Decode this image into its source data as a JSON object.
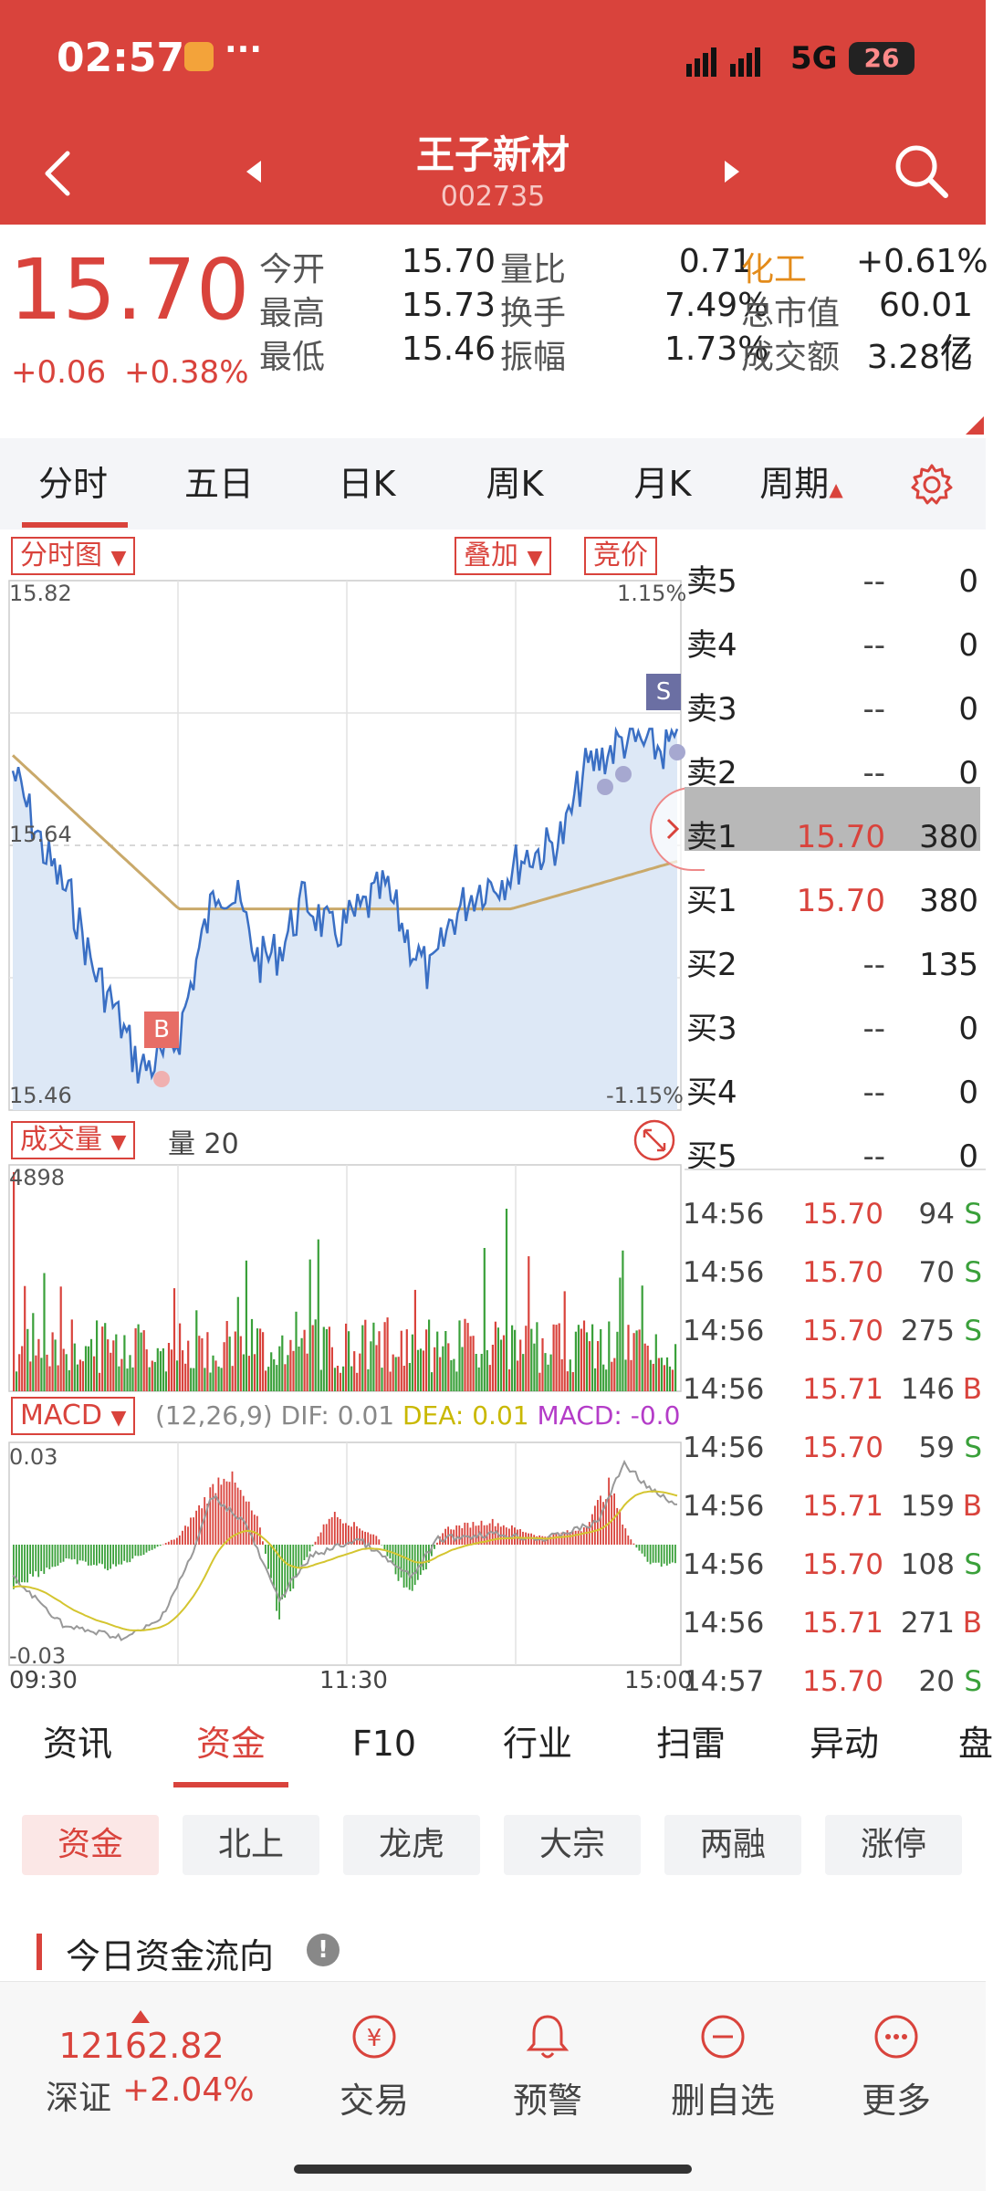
{
  "status": {
    "time": "02:57",
    "dots": "···",
    "network": "5G",
    "battery": "26"
  },
  "header": {
    "stock_name": "王子新材",
    "stock_code": "002735"
  },
  "quote": {
    "price": "15.70",
    "change": "+0.06",
    "change_pct": "+0.38%",
    "rows": [
      [
        {
          "l": "今开",
          "v": "15.70"
        },
        {
          "l": "量比",
          "v": "0.71"
        },
        {
          "l": "化工",
          "v": "+0.61%"
        }
      ],
      [
        {
          "l": "最高",
          "v": "15.73"
        },
        {
          "l": "换手",
          "v": "7.49%"
        },
        {
          "l": "总市值",
          "v": "60.01亿"
        }
      ],
      [
        {
          "l": "最低",
          "v": "15.46"
        },
        {
          "l": "振幅",
          "v": "1.73%"
        },
        {
          "l": "成交额",
          "v": "3.28亿"
        }
      ]
    ]
  },
  "tabs": [
    "分时",
    "五日",
    "日K",
    "周K",
    "月K",
    "周期"
  ],
  "chart": {
    "selector": "分时图",
    "overlay": "叠加",
    "auction": "竞价",
    "y_top": "15.82",
    "y_mid": "15.64",
    "y_bottom": "15.46",
    "pct_top": "1.15%",
    "pct_bottom": "-1.15%",
    "buy_marker": "B",
    "sell_marker": "S",
    "volume_selector": "成交量",
    "volume_label": "量 20",
    "volume_max": "4898",
    "macd_selector": "MACD",
    "macd_params": "(12,26,9)",
    "dif": "DIF: 0.01",
    "dea": "DEA: 0.01",
    "macd_val": "MACD: -0.0",
    "macd_top": "0.03",
    "macd_bottom": "-0.03",
    "x_start": "09:30",
    "x_mid": "11:30",
    "x_end": "15:00"
  },
  "orderbook": [
    {
      "l": "卖5",
      "p": "--",
      "v": "0"
    },
    {
      "l": "卖4",
      "p": "--",
      "v": "0"
    },
    {
      "l": "卖3",
      "p": "--",
      "v": "0"
    },
    {
      "l": "卖2",
      "p": "--",
      "v": "0"
    },
    {
      "l": "卖1",
      "p": "15.70",
      "v": "380"
    },
    {
      "l": "买1",
      "p": "15.70",
      "v": "380"
    },
    {
      "l": "买2",
      "p": "--",
      "v": "135"
    },
    {
      "l": "买3",
      "p": "--",
      "v": "0"
    },
    {
      "l": "买4",
      "p": "--",
      "v": "0"
    },
    {
      "l": "买5",
      "p": "--",
      "v": "0"
    }
  ],
  "ticks": [
    {
      "t": "14:56",
      "p": "15.70",
      "v": "94",
      "s": "S"
    },
    {
      "t": "14:56",
      "p": "15.70",
      "v": "70",
      "s": "S"
    },
    {
      "t": "14:56",
      "p": "15.70",
      "v": "275",
      "s": "S"
    },
    {
      "t": "14:56",
      "p": "15.71",
      "v": "146",
      "s": "B"
    },
    {
      "t": "14:56",
      "p": "15.70",
      "v": "59",
      "s": "S"
    },
    {
      "t": "14:56",
      "p": "15.71",
      "v": "159",
      "s": "B"
    },
    {
      "t": "14:56",
      "p": "15.70",
      "v": "108",
      "s": "S"
    },
    {
      "t": "14:56",
      "p": "15.71",
      "v": "271",
      "s": "B"
    },
    {
      "t": "14:57",
      "p": "15.70",
      "v": "20",
      "s": "S"
    }
  ],
  "bottom_tabs": [
    "资讯",
    "资金",
    "F10",
    "行业",
    "扫雷",
    "异动",
    "盘"
  ],
  "sub_tabs": [
    "资金",
    "北上",
    "龙虎",
    "大宗",
    "两融",
    "涨停"
  ],
  "section_title": "今日资金流向",
  "index": {
    "value": "12162.82",
    "name": "深证",
    "change": "+2.04%"
  },
  "nav": [
    {
      "icon": "trade-icon",
      "label": "交易"
    },
    {
      "icon": "bell-icon",
      "label": "预警"
    },
    {
      "icon": "minus-circle-icon",
      "label": "删自选"
    },
    {
      "icon": "more-icon",
      "label": "更多"
    }
  ],
  "colors": {
    "red": "#d9433c",
    "green": "#3aa03a",
    "blue": "#3a6fc4",
    "orange": "#e38b1a",
    "avg_line": "#c9a96a",
    "purple": "#b43cc8"
  }
}
